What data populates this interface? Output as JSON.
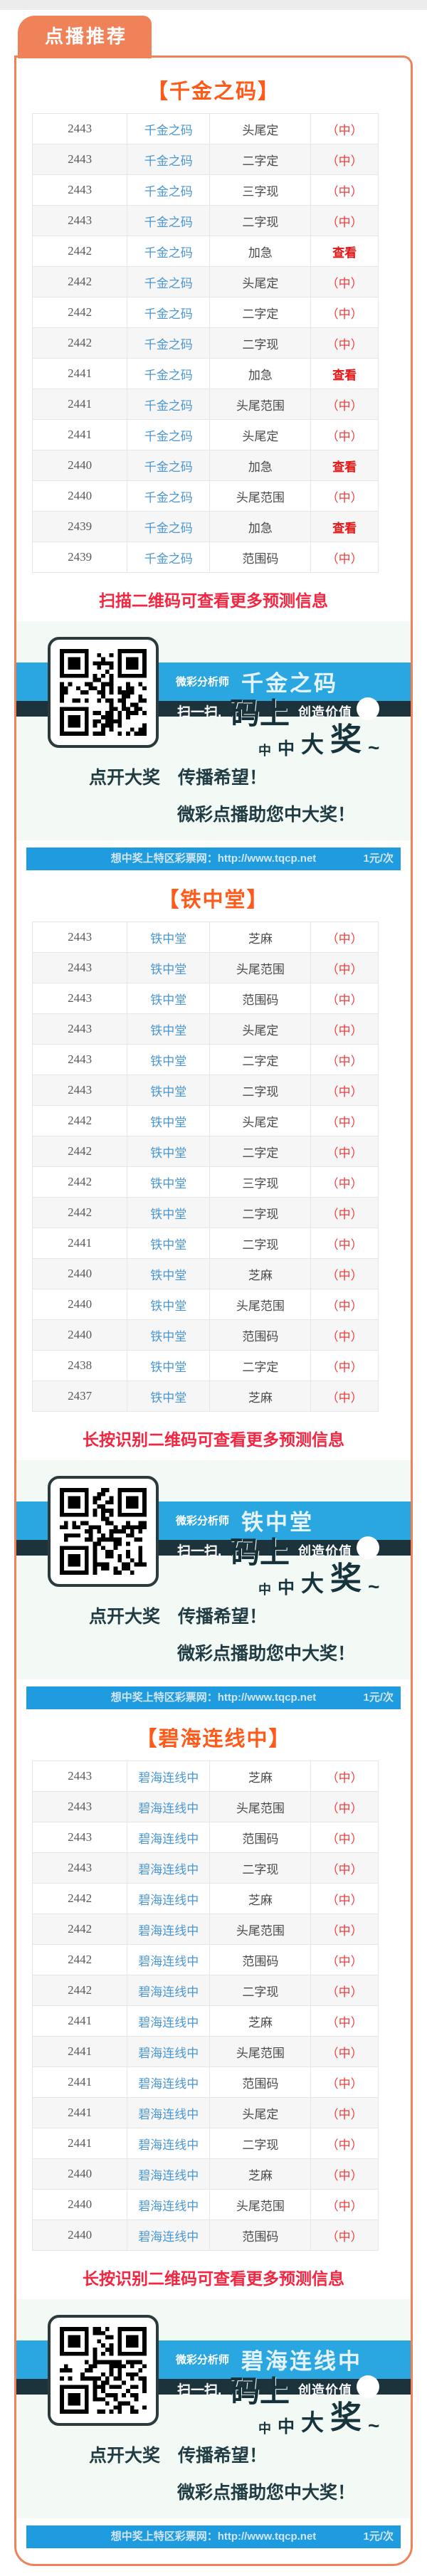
{
  "page": {
    "tab_label": "点播推荐",
    "hit_label": "（中）",
    "view_label": "查看",
    "slogan1": "点开大奖　传播希望！",
    "slogan2": "微彩点播助您中大奖！",
    "banner": {
      "analyst_label": "微彩分析师",
      "scan_prefix": "扫一扫,",
      "scan_big": "码上",
      "scan_suffix": "创造价值",
      "win_chars": [
        "中",
        "中",
        "大",
        "奖",
        "~"
      ]
    },
    "price_bar": {
      "site_text": "想中奖上特区彩票网：http://www.tqcp.net",
      "price": "1元/次"
    }
  },
  "colors": {
    "accent_orange": "#ef8259",
    "heading_orange": "#ff5a1a",
    "promo_red": "#f32540",
    "link_blue": "#4a96d2",
    "hit_red": "#f03c3c",
    "banner_blue": "#2aa6e1",
    "banner_dark": "#1c333b",
    "bar_blue": "#1f9be0"
  },
  "sections": [
    {
      "title": "【千金之码】",
      "analyst": "千金之码",
      "promo": "扫描二维码可查看更多预测信息",
      "rows": [
        {
          "issue": "2443",
          "play": "头尾定",
          "result": "hit"
        },
        {
          "issue": "2443",
          "play": "二字定",
          "result": "hit"
        },
        {
          "issue": "2443",
          "play": "三字现",
          "result": "hit"
        },
        {
          "issue": "2443",
          "play": "二字现",
          "result": "hit"
        },
        {
          "issue": "2442",
          "play": "加急",
          "result": "view"
        },
        {
          "issue": "2442",
          "play": "头尾定",
          "result": "hit"
        },
        {
          "issue": "2442",
          "play": "二字定",
          "result": "hit"
        },
        {
          "issue": "2442",
          "play": "二字现",
          "result": "hit"
        },
        {
          "issue": "2441",
          "play": "加急",
          "result": "view"
        },
        {
          "issue": "2441",
          "play": "头尾范围",
          "result": "hit"
        },
        {
          "issue": "2441",
          "play": "头尾定",
          "result": "hit"
        },
        {
          "issue": "2440",
          "play": "加急",
          "result": "view"
        },
        {
          "issue": "2440",
          "play": "头尾范围",
          "result": "hit"
        },
        {
          "issue": "2439",
          "play": "加急",
          "result": "view"
        },
        {
          "issue": "2439",
          "play": "范围码",
          "result": "hit"
        }
      ]
    },
    {
      "title": "【铁中堂】",
      "analyst": "铁中堂",
      "promo": "长按识别二维码可查看更多预测信息",
      "rows": [
        {
          "issue": "2443",
          "play": "芝麻",
          "result": "hit"
        },
        {
          "issue": "2443",
          "play": "头尾范围",
          "result": "hit"
        },
        {
          "issue": "2443",
          "play": "范围码",
          "result": "hit"
        },
        {
          "issue": "2443",
          "play": "头尾定",
          "result": "hit"
        },
        {
          "issue": "2443",
          "play": "二字定",
          "result": "hit"
        },
        {
          "issue": "2443",
          "play": "二字现",
          "result": "hit"
        },
        {
          "issue": "2442",
          "play": "头尾定",
          "result": "hit"
        },
        {
          "issue": "2442",
          "play": "二字定",
          "result": "hit"
        },
        {
          "issue": "2442",
          "play": "三字现",
          "result": "hit"
        },
        {
          "issue": "2442",
          "play": "二字现",
          "result": "hit"
        },
        {
          "issue": "2441",
          "play": "二字现",
          "result": "hit"
        },
        {
          "issue": "2440",
          "play": "芝麻",
          "result": "hit"
        },
        {
          "issue": "2440",
          "play": "头尾范围",
          "result": "hit"
        },
        {
          "issue": "2440",
          "play": "范围码",
          "result": "hit"
        },
        {
          "issue": "2438",
          "play": "二字定",
          "result": "hit"
        },
        {
          "issue": "2437",
          "play": "芝麻",
          "result": "hit"
        }
      ]
    },
    {
      "title": "【碧海连线中】",
      "analyst": "碧海连线中",
      "promo": "长按识别二维码可查看更多预测信息",
      "rows": [
        {
          "issue": "2443",
          "play": "芝麻",
          "result": "hit"
        },
        {
          "issue": "2443",
          "play": "头尾范围",
          "result": "hit"
        },
        {
          "issue": "2443",
          "play": "范围码",
          "result": "hit"
        },
        {
          "issue": "2443",
          "play": "二字现",
          "result": "hit"
        },
        {
          "issue": "2442",
          "play": "芝麻",
          "result": "hit"
        },
        {
          "issue": "2442",
          "play": "头尾范围",
          "result": "hit"
        },
        {
          "issue": "2442",
          "play": "范围码",
          "result": "hit"
        },
        {
          "issue": "2442",
          "play": "二字现",
          "result": "hit"
        },
        {
          "issue": "2441",
          "play": "芝麻",
          "result": "hit"
        },
        {
          "issue": "2441",
          "play": "头尾范围",
          "result": "hit"
        },
        {
          "issue": "2441",
          "play": "范围码",
          "result": "hit"
        },
        {
          "issue": "2441",
          "play": "头尾定",
          "result": "hit"
        },
        {
          "issue": "2441",
          "play": "二字现",
          "result": "hit"
        },
        {
          "issue": "2440",
          "play": "芝麻",
          "result": "hit"
        },
        {
          "issue": "2440",
          "play": "头尾范围",
          "result": "hit"
        },
        {
          "issue": "2440",
          "play": "范围码",
          "result": "hit"
        }
      ]
    }
  ]
}
